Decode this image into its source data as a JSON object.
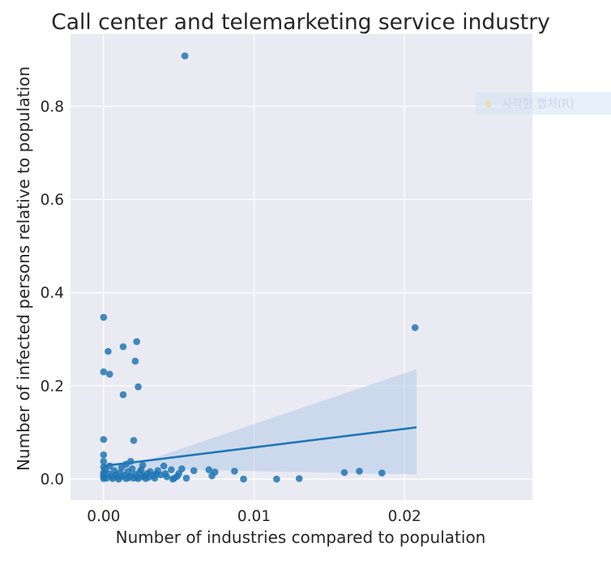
{
  "chart_data": {
    "type": "scatter",
    "title": "Call center and telemarketing service industry",
    "xlabel": "Number of industries compared to population",
    "ylabel": "Number of infected persons relative to population",
    "xlim": [
      -0.0022,
      0.0285
    ],
    "ylim": [
      -0.045,
      0.955
    ],
    "xticks": [
      0.0,
      0.01,
      0.02
    ],
    "xtick_labels": [
      "0.00",
      "0.01",
      "0.02"
    ],
    "yticks": [
      0.0,
      0.2,
      0.4,
      0.6,
      0.8
    ],
    "ytick_labels": [
      "0.0",
      "0.2",
      "0.4",
      "0.6",
      "0.8"
    ],
    "grid": true,
    "style": "seaborn-darkgrid",
    "colors": {
      "points": "#1f77b4",
      "line": "#1f77b4",
      "band": "#aec7e8",
      "background": "#eaeaf2"
    },
    "regression": {
      "line": [
        [
          0.0,
          0.028
        ],
        [
          0.0208,
          0.111
        ]
      ],
      "ci_upper": [
        [
          0.0,
          0.035
        ],
        [
          0.0025,
          0.036
        ],
        [
          0.0208,
          0.236
        ]
      ],
      "ci_lower": [
        [
          0.0,
          0.021
        ],
        [
          0.0025,
          0.022
        ],
        [
          0.0208,
          0.01
        ]
      ]
    },
    "points": [
      [
        0.0054,
        0.908
      ],
      [
        0.0,
        0.347
      ],
      [
        0.0207,
        0.325
      ],
      [
        0.0022,
        0.295
      ],
      [
        0.0013,
        0.284
      ],
      [
        0.0003,
        0.274
      ],
      [
        0.0021,
        0.253
      ],
      [
        0.0,
        0.23
      ],
      [
        0.0004,
        0.225
      ],
      [
        0.0023,
        0.198
      ],
      [
        0.0013,
        0.181
      ],
      [
        0.0,
        0.085
      ],
      [
        0.002,
        0.083
      ],
      [
        0.0,
        0.052
      ],
      [
        0.0,
        0.038
      ],
      [
        0.0018,
        0.038
      ],
      [
        0.0004,
        0.028
      ],
      [
        0.0015,
        0.032
      ],
      [
        0.0026,
        0.03
      ],
      [
        0.0001,
        0.02
      ],
      [
        0.0003,
        0.012
      ],
      [
        0.0005,
        0.006
      ],
      [
        0.0007,
        0.018
      ],
      [
        0.0009,
        0.004
      ],
      [
        0.0011,
        0.014
      ],
      [
        0.0012,
        0.025
      ],
      [
        0.0014,
        0.008
      ],
      [
        0.0016,
        0.016
      ],
      [
        0.0017,
        0.003
      ],
      [
        0.0019,
        0.022
      ],
      [
        0.0021,
        0.01
      ],
      [
        0.0022,
        0.004
      ],
      [
        0.0024,
        0.015
      ],
      [
        0.0025,
        0.02
      ],
      [
        0.0027,
        0.007
      ],
      [
        0.0029,
        0.012
      ],
      [
        0.0031,
        0.016
      ],
      [
        0.0033,
        0.008
      ],
      [
        0.0034,
        0.002
      ],
      [
        0.0036,
        0.018
      ],
      [
        0.0038,
        0.009
      ],
      [
        0.004,
        0.028
      ],
      [
        0.0042,
        0.005
      ],
      [
        0.0045,
        0.02
      ],
      [
        0.0047,
        0.002
      ],
      [
        0.005,
        0.012
      ],
      [
        0.0052,
        0.022
      ],
      [
        0.006,
        0.018
      ],
      [
        0.007,
        0.02
      ],
      [
        0.0072,
        0.007
      ],
      [
        0.0074,
        0.015
      ],
      [
        0.0087,
        0.017
      ],
      [
        0.0093,
        0.0
      ],
      [
        0.0115,
        0.0
      ],
      [
        0.013,
        0.001
      ],
      [
        0.016,
        0.014
      ],
      [
        0.017,
        0.017
      ],
      [
        0.0185,
        0.013
      ],
      [
        0.0,
        0.001
      ],
      [
        0.0,
        0.005
      ],
      [
        0.0,
        0.009
      ],
      [
        0.0,
        0.014
      ],
      [
        0.0,
        0.026
      ],
      [
        0.0002,
        0.002
      ],
      [
        0.0006,
        0.001
      ],
      [
        0.0008,
        0.009
      ],
      [
        0.001,
        0.0
      ],
      [
        0.0012,
        0.005
      ],
      [
        0.0015,
        0.001
      ],
      [
        0.0018,
        0.007
      ],
      [
        0.002,
        0.002
      ],
      [
        0.0023,
        0.001
      ],
      [
        0.0026,
        0.005
      ],
      [
        0.0028,
        0.001
      ],
      [
        0.003,
        0.004
      ],
      [
        0.0035,
        0.011
      ],
      [
        0.0041,
        0.012
      ],
      [
        0.0046,
        0.0
      ],
      [
        0.0049,
        0.006
      ],
      [
        0.0055,
        0.002
      ]
    ]
  },
  "watermark": {
    "text": "사각형 캡처(R)"
  }
}
